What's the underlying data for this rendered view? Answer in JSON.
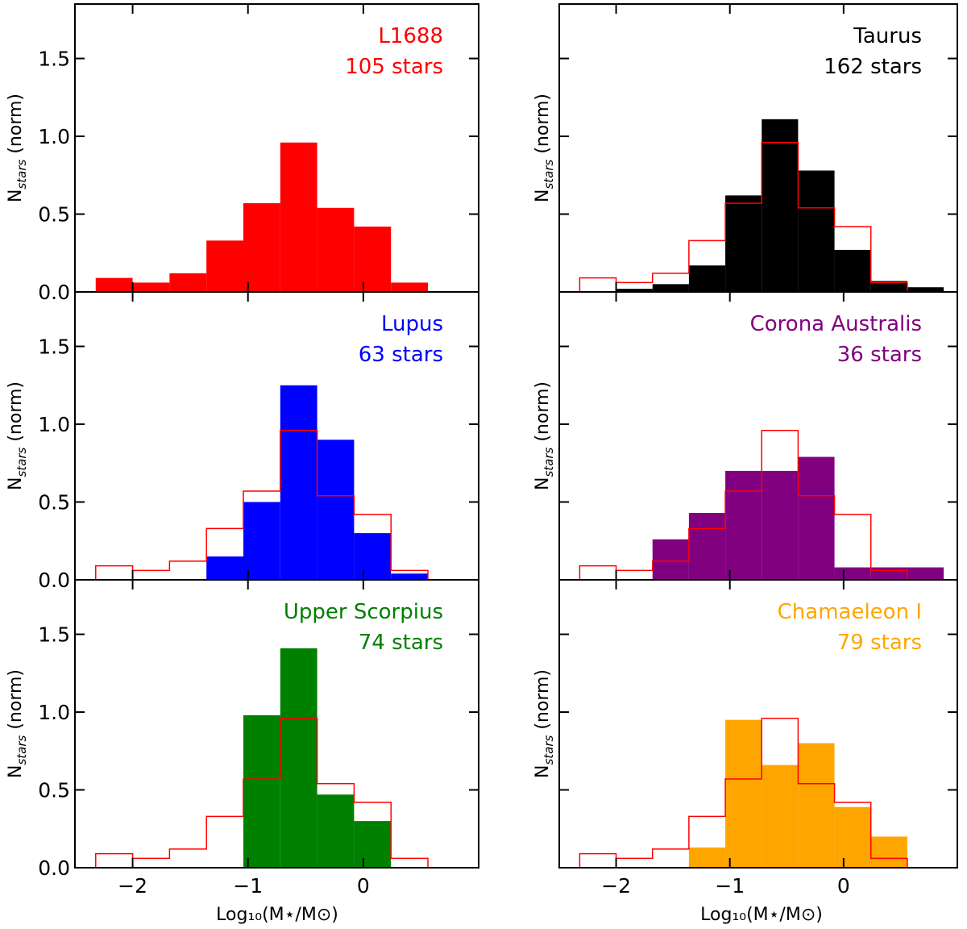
{
  "figure": {
    "xlabel": "Log₁₀(M⋆/M⊙)",
    "ylabel_main": "N",
    "ylabel_sub": "stars",
    "ylabel_suffix": " (norm)"
  },
  "chart_data": [
    {
      "type": "bar",
      "panel": "top-left",
      "region": "L1688",
      "count_label": "105 stars",
      "color": "#ff0000",
      "edges": [
        -2.32,
        -2.0,
        -1.68,
        -1.36,
        -1.04,
        -0.72,
        -0.4,
        -0.08,
        0.24,
        0.56
      ],
      "values": [
        0.09,
        0.06,
        0.12,
        0.33,
        0.57,
        0.96,
        0.54,
        0.42,
        0.06
      ],
      "reference": null,
      "xlim": [
        -2.5,
        1.0
      ],
      "ylim": [
        0,
        1.85
      ],
      "yticks": [
        0.0,
        0.5,
        1.0,
        1.5
      ],
      "ytick_labels": [
        "0.0",
        "0.5",
        "1.0",
        "1.5"
      ],
      "xticks": [
        -2,
        -1,
        0
      ],
      "xtick_labels": [],
      "legend_position": "top-right"
    },
    {
      "type": "bar",
      "panel": "top-right",
      "region": "Taurus",
      "count_label": "162 stars",
      "color": "#000000",
      "edges": [
        -2.0,
        -1.68,
        -1.36,
        -1.04,
        -0.72,
        -0.4,
        -0.08,
        0.24,
        0.56,
        0.88
      ],
      "values": [
        0.02,
        0.05,
        0.17,
        0.62,
        1.11,
        0.78,
        0.27,
        0.07,
        0.03
      ],
      "reference": "L1688",
      "xlim": [
        -2.5,
        1.0
      ],
      "ylim": [
        0,
        1.85
      ],
      "yticks": [
        0.0,
        0.5,
        1.0,
        1.5
      ],
      "ytick_labels": [],
      "xticks": [
        -2,
        -1,
        0
      ],
      "xtick_labels": [],
      "legend_position": "top-right"
    },
    {
      "type": "bar",
      "panel": "middle-left",
      "region": "Lupus",
      "count_label": "63 stars",
      "color": "#0000ff",
      "edges": [
        -1.36,
        -1.04,
        -0.72,
        -0.4,
        -0.08,
        0.24,
        0.56
      ],
      "values": [
        0.15,
        0.5,
        1.25,
        0.9,
        0.3,
        0.04
      ],
      "reference": "L1688",
      "xlim": [
        -2.5,
        1.0
      ],
      "ylim": [
        0,
        1.85
      ],
      "yticks": [
        0.0,
        0.5,
        1.0,
        1.5
      ],
      "ytick_labels": [
        "0.0",
        "0.5",
        "1.0",
        "1.5"
      ],
      "xticks": [
        -2,
        -1,
        0
      ],
      "xtick_labels": [],
      "legend_position": "top-right"
    },
    {
      "type": "bar",
      "panel": "middle-right",
      "region": "Corona Australis",
      "count_label": "36 stars",
      "color": "#800080",
      "edges": [
        -1.68,
        -1.36,
        -1.04,
        -0.72,
        -0.4,
        -0.08,
        0.24,
        0.56,
        0.88
      ],
      "values": [
        0.26,
        0.43,
        0.7,
        0.7,
        0.79,
        0.08,
        0.08,
        0.08
      ],
      "reference": "L1688",
      "xlim": [
        -2.5,
        1.0
      ],
      "ylim": [
        0,
        1.85
      ],
      "yticks": [
        0.0,
        0.5,
        1.0,
        1.5
      ],
      "ytick_labels": [],
      "xticks": [
        -2,
        -1,
        0
      ],
      "xtick_labels": [],
      "legend_position": "top-right"
    },
    {
      "type": "bar",
      "panel": "bottom-left",
      "region": "Upper Scorpius",
      "count_label": "74 stars",
      "color": "#008000",
      "edges": [
        -1.04,
        -0.72,
        -0.4,
        -0.08,
        0.24
      ],
      "values": [
        0.98,
        1.41,
        0.47,
        0.3
      ],
      "reference": "L1688",
      "xlim": [
        -2.5,
        1.0
      ],
      "ylim": [
        0,
        1.85
      ],
      "yticks": [
        0.0,
        0.5,
        1.0,
        1.5
      ],
      "ytick_labels": [
        "0.0",
        "0.5",
        "1.0",
        "1.5"
      ],
      "xticks": [
        -2,
        -1,
        0
      ],
      "xtick_labels": [
        "−2",
        "−1",
        "0"
      ],
      "legend_position": "top-right"
    },
    {
      "type": "bar",
      "panel": "bottom-right",
      "region": "Chamaeleon I",
      "count_label": "79 stars",
      "color": "#ffa500",
      "edges": [
        -1.36,
        -1.04,
        -0.72,
        -0.4,
        -0.08,
        0.24,
        0.56
      ],
      "values": [
        0.13,
        0.95,
        0.66,
        0.8,
        0.39,
        0.2
      ],
      "reference": "L1688",
      "xlim": [
        -2.5,
        1.0
      ],
      "ylim": [
        0,
        1.85
      ],
      "yticks": [
        0.0,
        0.5,
        1.0,
        1.5
      ],
      "ytick_labels": [],
      "xticks": [
        -2,
        -1,
        0
      ],
      "xtick_labels": [
        "−2",
        "−1",
        "0"
      ],
      "legend_position": "top-right"
    }
  ]
}
